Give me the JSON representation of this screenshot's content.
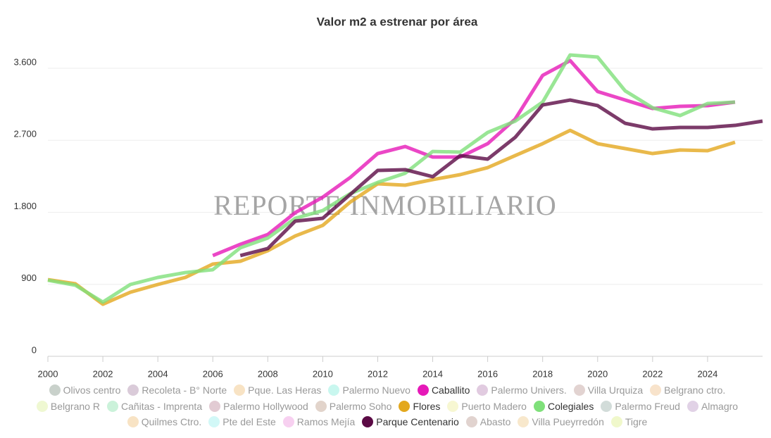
{
  "chart_data": {
    "type": "line",
    "title": "Valor m2 a estrenar por área",
    "watermark": "REPORTE INMOBILIARIO",
    "x": [
      2000,
      2001,
      2002,
      2003,
      2004,
      2005,
      2006,
      2007,
      2008,
      2009,
      2010,
      2011,
      2012,
      2013,
      2014,
      2015,
      2016,
      2017,
      2018,
      2019,
      2020,
      2021,
      2022,
      2023,
      2024,
      2025,
      2026
    ],
    "xlim": [
      2000,
      2026
    ],
    "xticks": [
      2000,
      2002,
      2004,
      2006,
      2008,
      2010,
      2012,
      2014,
      2016,
      2018,
      2020,
      2022,
      2024
    ],
    "ylim": [
      0,
      4000
    ],
    "yticks": [
      0,
      900,
      {
        "value": 1800,
        "label": "1.800"
      },
      {
        "value": 2700,
        "label": "2.700"
      },
      {
        "value": 3600,
        "label": "3.600"
      }
    ],
    "grid": true,
    "series": [
      {
        "name": "Olivos centro",
        "color": "#c9d1cb",
        "visible": false
      },
      {
        "name": "Recoleta - B° Norte",
        "color": "#dacbd9",
        "visible": false
      },
      {
        "name": "Pque. Las Heras",
        "color": "#f8e3c4",
        "visible": false
      },
      {
        "name": "Palermo Nuevo",
        "color": "#c9f7ef",
        "visible": false
      },
      {
        "name": "Caballito",
        "color": "#e619b8",
        "visible": true,
        "values": [
          null,
          null,
          null,
          null,
          null,
          null,
          1259,
          1400,
          1523,
          1796,
          1989,
          2236,
          2535,
          2623,
          2491,
          2491,
          2658,
          2966,
          3512,
          3697,
          3310,
          3204,
          3098,
          3125,
          3134,
          3178,
          null
        ]
      },
      {
        "name": "Palermo Univers.",
        "color": "#e1cbe0",
        "visible": false
      },
      {
        "name": "Villa Urquiza",
        "color": "#e2d3d1",
        "visible": false
      },
      {
        "name": "Belgrano ctro.",
        "color": "#f8e3cb",
        "visible": false
      },
      {
        "name": "Belgrano R",
        "color": "#eff8d2",
        "visible": false
      },
      {
        "name": "Cañitas - Imprenta",
        "color": "#cbf2da",
        "visible": false
      },
      {
        "name": "Palermo Hollywood",
        "color": "#e2cbd3",
        "visible": false
      },
      {
        "name": "Palermo Soho",
        "color": "#e2d4cb",
        "visible": false
      },
      {
        "name": "Flores",
        "color": "#e3a81e",
        "visible": true,
        "values": [
          959,
          907,
          651,
          801,
          898,
          986,
          1153,
          1188,
          1320,
          1505,
          1637,
          1928,
          2157,
          2139,
          2209,
          2271,
          2359,
          2509,
          2658,
          2825,
          2658,
          2597,
          2535,
          2579,
          2570,
          2676,
          null
        ]
      },
      {
        "name": "Puerto Madero",
        "color": "#f7f7d2",
        "visible": false
      },
      {
        "name": "Colegiales",
        "color": "#7fe07a",
        "visible": true,
        "values": [
          951,
          889,
          678,
          898,
          986,
          1047,
          1083,
          1356,
          1479,
          1725,
          1822,
          2033,
          2174,
          2289,
          2561,
          2553,
          2799,
          2940,
          3178,
          3767,
          3741,
          3319,
          3107,
          3010,
          3160,
          3178,
          null
        ]
      },
      {
        "name": "Palermo Freud",
        "color": "#d2dcd9",
        "visible": false
      },
      {
        "name": "Almagro",
        "color": "#e1d2e6",
        "visible": false
      },
      {
        "name": "Quilmes Ctro.",
        "color": "#f8e3c4",
        "visible": false
      },
      {
        "name": "Pte del Este",
        "color": "#d2f8f7",
        "visible": false
      },
      {
        "name": "Ramos Mejía",
        "color": "#f7d0f0",
        "visible": false
      },
      {
        "name": "Parque Centenario",
        "color": "#5b0a45",
        "visible": true,
        "values": [
          null,
          null,
          null,
          null,
          null,
          null,
          null,
          1259,
          1347,
          1690,
          1725,
          2024,
          2324,
          2333,
          2245,
          2509,
          2465,
          2737,
          3142,
          3204,
          3134,
          2913,
          2843,
          2861,
          2861,
          2887,
          2940
        ]
      },
      {
        "name": "Abasto",
        "color": "#e1d3cf",
        "visible": false
      },
      {
        "name": "Villa Pueyrredón",
        "color": "#f8e8cc",
        "visible": false
      },
      {
        "name": "Tigre",
        "color": "#f0f8cb",
        "visible": false
      }
    ]
  }
}
